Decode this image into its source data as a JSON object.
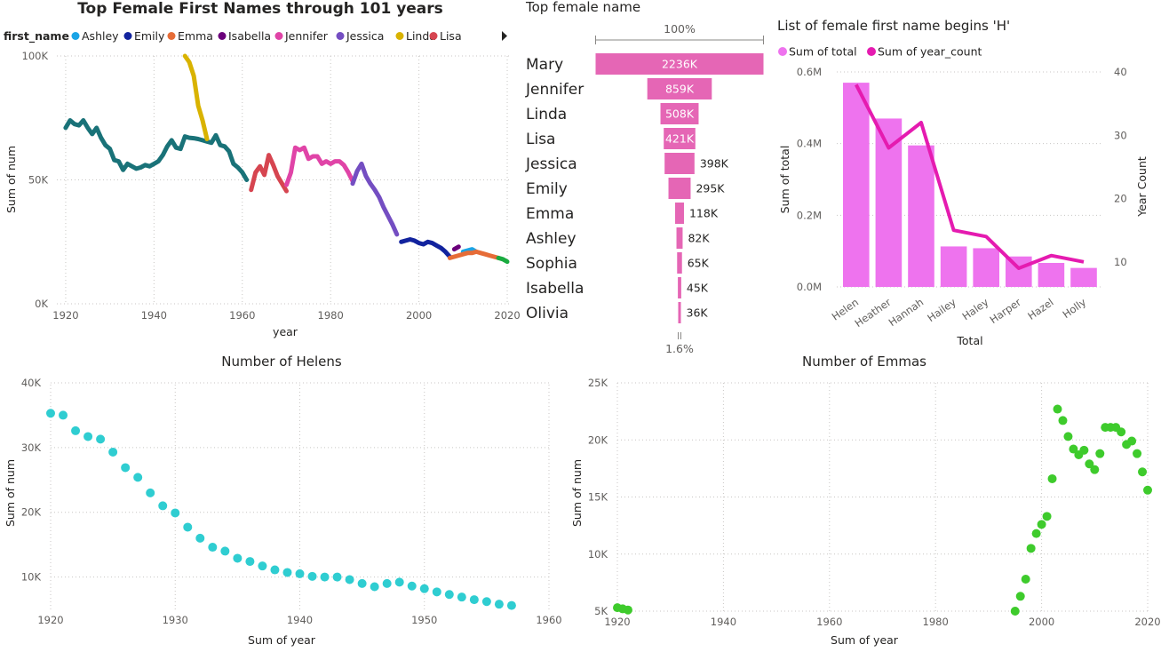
{
  "chart_data": [
    {
      "id": "trend",
      "type": "line",
      "title": "Top Female First Names through 101 years",
      "legend_title": "first_name",
      "legend": [
        {
          "name": "Ashley",
          "color": "#1AA4E6"
        },
        {
          "name": "Emily",
          "color": "#12239E"
        },
        {
          "name": "Emma",
          "color": "#E66C37"
        },
        {
          "name": "Isabella",
          "color": "#6B007B"
        },
        {
          "name": "Jennifer",
          "color": "#E044A7"
        },
        {
          "name": "Jessica",
          "color": "#744EC2"
        },
        {
          "name": "Linda",
          "color": "#D9B300"
        },
        {
          "name": "Lisa",
          "color": "#D64550"
        }
      ],
      "xlabel": "year",
      "ylabel": "Sum of num",
      "xlim": [
        1918,
        2021
      ],
      "ylim": [
        0,
        100000
      ],
      "xticks": [
        1920,
        1940,
        1960,
        1980,
        2000,
        2020
      ],
      "xtick_labels": [
        "1920",
        "1940",
        "1960",
        "1980",
        "2000",
        "2020"
      ],
      "yticks": [
        0,
        50000,
        100000
      ],
      "ytick_labels": [
        "0K",
        "50K",
        "100K"
      ],
      "series": [
        {
          "color": "#197278",
          "points": [
            [
              1920,
              71000
            ],
            [
              1921,
              74000
            ],
            [
              1922,
              72500
            ],
            [
              1923,
              72000
            ],
            [
              1924,
              74000
            ],
            [
              1925,
              71000
            ],
            [
              1926,
              68500
            ],
            [
              1927,
              71000
            ],
            [
              1928,
              67000
            ],
            [
              1929,
              64000
            ],
            [
              1930,
              62500
            ],
            [
              1931,
              58000
            ],
            [
              1932,
              57500
            ],
            [
              1933,
              54000
            ],
            [
              1934,
              56500
            ],
            [
              1935,
              55500
            ],
            [
              1936,
              54500
            ],
            [
              1937,
              55000
            ],
            [
              1938,
              56000
            ],
            [
              1939,
              55500
            ],
            [
              1940,
              56500
            ],
            [
              1941,
              57500
            ],
            [
              1942,
              60000
            ],
            [
              1943,
              63500
            ],
            [
              1944,
              66000
            ],
            [
              1945,
              63000
            ],
            [
              1946,
              62500
            ],
            [
              1947,
              67500
            ],
            [
              1948,
              67000
            ],
            [
              1949,
              66800
            ],
            [
              1950,
              66500
            ],
            [
              1951,
              66000
            ],
            [
              1952,
              65500
            ],
            [
              1953,
              65000
            ],
            [
              1954,
              68000
            ],
            [
              1955,
              64000
            ],
            [
              1956,
              63500
            ],
            [
              1957,
              61500
            ],
            [
              1958,
              56500
            ],
            [
              1959,
              55000
            ],
            [
              1960,
              53000
            ],
            [
              1961,
              50000
            ]
          ]
        },
        {
          "color": "#D9B300",
          "points": [
            [
              1947,
              100000
            ],
            [
              1948,
              97500
            ],
            [
              1949,
              92000
            ],
            [
              1950,
              80000
            ],
            [
              1951,
              74000
            ],
            [
              1952,
              66500
            ]
          ]
        },
        {
          "color": "#D64550",
          "points": [
            [
              1962,
              46000
            ],
            [
              1963,
              53000
            ],
            [
              1964,
              55500
            ],
            [
              1965,
              52000
            ],
            [
              1966,
              60000
            ],
            [
              1967,
              56000
            ],
            [
              1968,
              51500
            ],
            [
              1969,
              48500
            ],
            [
              1970,
              45500
            ]
          ]
        },
        {
          "color": "#E044A7",
          "points": [
            [
              1970,
              48000
            ],
            [
              1971,
              53000
            ],
            [
              1972,
              63000
            ],
            [
              1973,
              62000
            ],
            [
              1974,
              63000
            ],
            [
              1975,
              58500
            ],
            [
              1976,
              59500
            ],
            [
              1977,
              59500
            ],
            [
              1978,
              56500
            ],
            [
              1979,
              57500
            ],
            [
              1980,
              56500
            ],
            [
              1981,
              57500
            ],
            [
              1982,
              57500
            ],
            [
              1983,
              56000
            ],
            [
              1984,
              53000
            ],
            [
              1985,
              49500
            ]
          ]
        },
        {
          "color": "#744EC2",
          "points": [
            [
              1985,
              48500
            ],
            [
              1986,
              53500
            ],
            [
              1987,
              56500
            ],
            [
              1988,
              51500
            ],
            [
              1989,
              48500
            ],
            [
              1990,
              46000
            ],
            [
              1991,
              43000
            ],
            [
              1992,
              39000
            ],
            [
              1993,
              35500
            ],
            [
              1994,
              32000
            ],
            [
              1995,
              28000
            ]
          ]
        },
        {
          "color": "#12239E",
          "points": [
            [
              1996,
              25000
            ],
            [
              1997,
              25500
            ],
            [
              1998,
              26000
            ],
            [
              1999,
              25500
            ],
            [
              2000,
              24500
            ],
            [
              2001,
              24000
            ],
            [
              2002,
              25000
            ],
            [
              2003,
              24500
            ],
            [
              2004,
              23500
            ],
            [
              2005,
              22500
            ],
            [
              2006,
              21000
            ],
            [
              2007,
              19000
            ]
          ]
        },
        {
          "color": "#6B007B",
          "points": [
            [
              2008,
              22000
            ],
            [
              2009,
              23000
            ]
          ]
        },
        {
          "color": "#1AA4E6",
          "points": [
            [
              2010,
              21000
            ],
            [
              2011,
              21500
            ],
            [
              2012,
              22000
            ],
            [
              2013,
              21000
            ]
          ]
        },
        {
          "color": "#E66C37",
          "points": [
            [
              2007,
              18500
            ],
            [
              2008,
              19000
            ],
            [
              2009,
              19500
            ],
            [
              2010,
              20000
            ],
            [
              2011,
              20500
            ],
            [
              2012,
              20500
            ],
            [
              2013,
              21000
            ],
            [
              2014,
              20500
            ],
            [
              2015,
              20000
            ],
            [
              2016,
              19500
            ],
            [
              2017,
              19000
            ],
            [
              2018,
              18500
            ]
          ]
        },
        {
          "color": "#1AAB40",
          "points": [
            [
              2018,
              18500
            ],
            [
              2019,
              18000
            ],
            [
              2020,
              17000
            ]
          ]
        }
      ]
    },
    {
      "id": "funnel",
      "type": "bar",
      "title": "Top female name",
      "top_label": "100%",
      "bottom_label": "1.6%",
      "color": "#E566B5",
      "categories": [
        "Mary",
        "Jennifer",
        "Linda",
        "Lisa",
        "Jessica",
        "Emily",
        "Emma",
        "Ashley",
        "Sophia",
        "Isabella",
        "Olivia"
      ],
      "values": [
        2236000,
        859000,
        508000,
        421000,
        398000,
        295000,
        118000,
        82000,
        65000,
        45000,
        36000
      ],
      "value_labels": [
        "2236K",
        "859K",
        "508K",
        "421K",
        "398K",
        "295K",
        "118K",
        "82K",
        "65K",
        "45K",
        "36K"
      ]
    },
    {
      "id": "combo",
      "type": "bar",
      "title": "List of female first name begins 'H'",
      "legend": [
        {
          "name": "Sum of total",
          "color": "#EE73EE"
        },
        {
          "name": "Sum of year_count",
          "color": "#E51BB0"
        }
      ],
      "xlabel": "Total",
      "ylabel": "Sum of total",
      "y2label": "Year Count",
      "categories": [
        "Helen",
        "Heather",
        "Hannah",
        "Hailey",
        "Haley",
        "Harper",
        "Hazel",
        "Holly"
      ],
      "series": [
        {
          "name": "Sum of total",
          "type": "bar",
          "values": [
            570000,
            470000,
            395000,
            113000,
            108000,
            85000,
            67000,
            53000
          ]
        },
        {
          "name": "Sum of year_count",
          "type": "line",
          "values": [
            38,
            28,
            32,
            15,
            14,
            9,
            11,
            10
          ]
        }
      ],
      "ylim": [
        0,
        600000
      ],
      "y2lim": [
        4,
        40
      ],
      "yticks": [
        0,
        200000,
        400000,
        600000
      ],
      "ytick_labels": [
        "0.0M",
        "0.2M",
        "0.4M",
        "0.6M"
      ],
      "y2ticks": [
        10,
        20,
        30,
        40
      ],
      "y2tick_labels": [
        "10",
        "20",
        "30",
        "40"
      ]
    },
    {
      "id": "helens",
      "type": "scatter",
      "title": "Number of Helens",
      "xlabel": "Sum of year",
      "ylabel": "Sum of num",
      "color": "#2FCDD1",
      "xlim": [
        1920,
        1960
      ],
      "ylim": [
        5000,
        40000
      ],
      "xticks": [
        1920,
        1930,
        1940,
        1950,
        1960
      ],
      "xtick_labels": [
        "1920",
        "1930",
        "1940",
        "1950",
        "1960"
      ],
      "yticks": [
        10000,
        20000,
        30000,
        40000
      ],
      "ytick_labels": [
        "10K",
        "20K",
        "30K",
        "40K"
      ],
      "x": [
        1920,
        1921,
        1922,
        1923,
        1924,
        1925,
        1926,
        1927,
        1928,
        1929,
        1930,
        1931,
        1932,
        1933,
        1934,
        1935,
        1936,
        1937,
        1938,
        1939,
        1940,
        1941,
        1942,
        1943,
        1944,
        1945,
        1946,
        1947,
        1948,
        1949,
        1950,
        1951,
        1952,
        1953,
        1954,
        1955,
        1956,
        1957
      ],
      "y": [
        35300,
        35000,
        32600,
        31700,
        31300,
        29300,
        26900,
        25400,
        23000,
        21000,
        19900,
        17700,
        16000,
        14600,
        14000,
        12900,
        12400,
        11700,
        11100,
        10700,
        10500,
        10100,
        10000,
        10000,
        9600,
        9000,
        8500,
        9000,
        9200,
        8600,
        8200,
        7700,
        7300,
        6900,
        6500,
        6200,
        5800,
        5600
      ]
    },
    {
      "id": "emmas",
      "type": "scatter",
      "title": "Number of Emmas",
      "xlabel": "Sum of year",
      "ylabel": "Sum of num",
      "color": "#3ECB2C",
      "xlim": [
        1920,
        2020
      ],
      "ylim": [
        5000,
        25000
      ],
      "xticks": [
        1920,
        1940,
        1960,
        1980,
        2000,
        2020
      ],
      "xtick_labels": [
        "1920",
        "1940",
        "1960",
        "1980",
        "2000",
        "2020"
      ],
      "yticks": [
        5000,
        10000,
        15000,
        20000,
        25000
      ],
      "ytick_labels": [
        "5K",
        "10K",
        "15K",
        "20K",
        "25K"
      ],
      "x": [
        1920,
        1921,
        1922,
        1995,
        1996,
        1997,
        1998,
        1999,
        2000,
        2001,
        2002,
        2003,
        2004,
        2005,
        2006,
        2007,
        2008,
        2009,
        2010,
        2011,
        2012,
        2013,
        2014,
        2015,
        2016,
        2017,
        2018,
        2019,
        2020
      ],
      "y": [
        5300,
        5200,
        5100,
        5000,
        6300,
        7800,
        10500,
        11800,
        12600,
        13300,
        16600,
        22700,
        21700,
        20300,
        19200,
        18700,
        19100,
        17900,
        17400,
        18800,
        21100,
        21100,
        21100,
        20700,
        19600,
        19900,
        18800,
        17200,
        15600
      ]
    }
  ]
}
